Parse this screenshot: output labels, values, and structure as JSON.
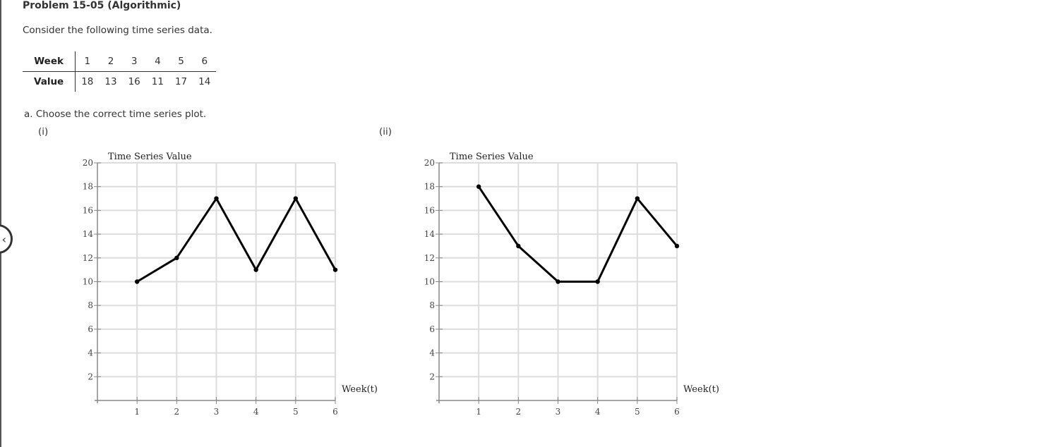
{
  "problem": {
    "title": "Problem 15-05 (Algorithmic)",
    "intro": "Consider the following time series data."
  },
  "table": {
    "row_headers": [
      "Week",
      "Value"
    ],
    "weeks": [
      "1",
      "2",
      "3",
      "4",
      "5",
      "6"
    ],
    "values": [
      "18",
      "13",
      "16",
      "11",
      "17",
      "14"
    ]
  },
  "question": {
    "prompt": "a. Choose the correct time series plot.",
    "options": [
      "(i)",
      "(ii)"
    ]
  },
  "nav": {
    "prev_icon": "chevron-left-icon",
    "prev_glyph": "‹"
  },
  "chart_data": [
    {
      "type": "line",
      "label": "(i)",
      "title": "Time Series Value",
      "xlabel": "Week(t)",
      "ylabel": "Time Series Value",
      "x": [
        1,
        2,
        3,
        4,
        5,
        6
      ],
      "values": [
        10,
        12,
        17,
        11,
        17,
        11
      ],
      "xlim": [
        0,
        6
      ],
      "ylim": [
        0,
        20
      ],
      "xticks": [
        1,
        2,
        3,
        4,
        5,
        6
      ],
      "yticks": [
        2,
        4,
        6,
        8,
        10,
        12,
        14,
        16,
        18,
        20
      ],
      "grid": true
    },
    {
      "type": "line",
      "label": "(ii)",
      "title": "Time Series Value",
      "xlabel": "Week(t)",
      "ylabel": "Time Series Value",
      "x": [
        1,
        2,
        3,
        4,
        5,
        6
      ],
      "values": [
        18,
        13,
        10,
        10,
        17,
        13
      ],
      "xlim": [
        0,
        6
      ],
      "ylim": [
        0,
        20
      ],
      "xticks": [
        1,
        2,
        3,
        4,
        5,
        6
      ],
      "yticks": [
        2,
        4,
        6,
        8,
        10,
        12,
        14,
        16,
        18,
        20
      ],
      "grid": true
    }
  ]
}
